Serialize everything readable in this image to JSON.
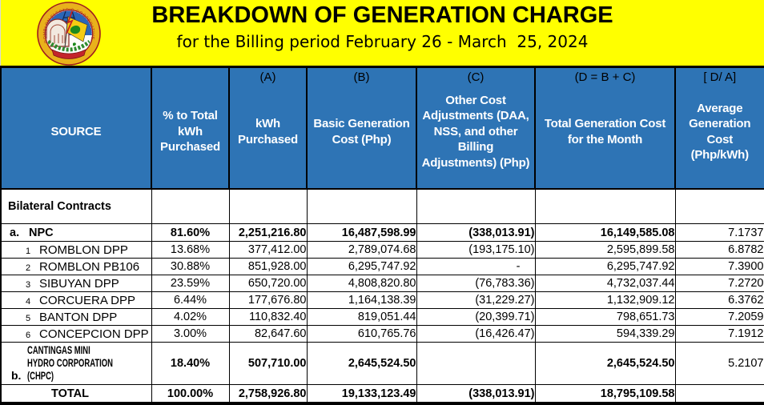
{
  "header": {
    "title": "BREAKDOWN OF GENERATION CHARGE",
    "subtitle": "for the Billing period February 26 - March  25, 2024",
    "logo_ring_text": "ROMBLON ELECTRIC COOPERATIVE, INC.",
    "band_color": "#FFFF00"
  },
  "table": {
    "header_bg": "#2E74B5",
    "border_color": "#000000",
    "columns": [
      {
        "letter": "",
        "title": "SOURCE"
      },
      {
        "letter": "",
        "title": "% to Total kWh Purchased"
      },
      {
        "letter": "(A)",
        "title": "kWh Purchased"
      },
      {
        "letter": "(B)",
        "title": "Basic Generation Cost (Php)"
      },
      {
        "letter": "(C)",
        "title": "Other Cost Adjustments (DAA, NSS, and other Billing Adjustments) (Php)"
      },
      {
        "letter": "(D = B + C)",
        "title": "Total Generation Cost for the Month"
      },
      {
        "letter": "[ D/ A]",
        "title": "Average Generation Cost (Php/kWh)"
      }
    ],
    "rows": [
      {
        "type": "section",
        "prefix": "",
        "source": "Bilateral Contracts",
        "pct": "",
        "kwh": "",
        "basic": "",
        "adj": "",
        "total": "",
        "avg": ""
      },
      {
        "type": "group",
        "prefix": "a.",
        "source": "NPC",
        "pct": "81.60%",
        "kwh": "2,251,216.80",
        "basic": "16,487,598.99",
        "adj": "(338,013.91)",
        "total": "16,149,585.08",
        "avg": "7.1737"
      },
      {
        "type": "sub",
        "prefix": "1",
        "source": "ROMBLON DPP",
        "pct": "13.68%",
        "kwh": "377,412.00",
        "basic": "2,789,074.68",
        "adj": "(193,175.10)",
        "total": "2,595,899.58",
        "avg": "6.8782"
      },
      {
        "type": "sub",
        "prefix": "2",
        "source": "ROMBLON PB106",
        "pct": "30.88%",
        "kwh": "851,928.00",
        "basic": "6,295,747.92",
        "adj": "-",
        "total": "6,295,747.92",
        "avg": "7.3900"
      },
      {
        "type": "sub",
        "prefix": "3",
        "source": "SIBUYAN DPP",
        "pct": "23.59%",
        "kwh": "650,720.00",
        "basic": "4,808,820.80",
        "adj": "(76,783.36)",
        "total": "4,732,037.44",
        "avg": "7.2720"
      },
      {
        "type": "sub",
        "prefix": "4",
        "source": "CORCUERA DPP",
        "pct": "6.44%",
        "kwh": "177,676.80",
        "basic": "1,164,138.39",
        "adj": "(31,229.27)",
        "total": "1,132,909.12",
        "avg": "6.3762"
      },
      {
        "type": "sub",
        "prefix": "5",
        "source": "BANTON DPP",
        "pct": "4.02%",
        "kwh": "110,832.40",
        "basic": "819,051.44",
        "adj": "(20,399.71)",
        "total": "798,651.73",
        "avg": "7.2059"
      },
      {
        "type": "sub",
        "prefix": "6",
        "source": "CONCEPCION DPP",
        "pct": "3.00%",
        "kwh": "82,647.60",
        "basic": "610,765.76",
        "adj": "(16,426.47)",
        "total": "594,339.29",
        "avg": "7.1912"
      },
      {
        "type": "cantingas",
        "prefix": "b.",
        "source": "CANTINGAS MINI HYDRO CORPORATION (CHPC)",
        "pct": "18.40%",
        "kwh": "507,710.00",
        "basic": "2,645,524.50",
        "adj": "",
        "total": "2,645,524.50",
        "avg": "5.2107"
      },
      {
        "type": "total",
        "prefix": "",
        "source": "TOTAL",
        "pct": "100.00%",
        "kwh": "2,758,926.80",
        "basic": "19,133,123.49",
        "adj": "(338,013.91)",
        "total": "18,795,109.58",
        "avg": ""
      }
    ]
  }
}
